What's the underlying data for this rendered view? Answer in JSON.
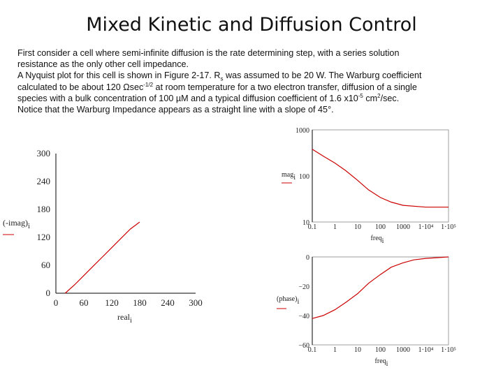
{
  "title": "Mixed Kinetic and Diffusion Control",
  "paragraph": {
    "line1": "First consider a cell where semi-infinite diffusion is the rate determining step, with a series solution",
    "line2": "resistance as the only other cell impedance.",
    "line3_a": "A Nyquist plot for this cell is shown in Figure 2-17. R",
    "line3_sub": "s",
    "line3_b": " was assumed to be 20 W. The Warburg coefficient",
    "line4_a": "calculated to be about 120 Ωsec",
    "line4_sup": "-1/2",
    "line4_b": " at room temperature for a two electron transfer, diffusion of a single",
    "line5_a": "species with a bulk concentration of 100 µM and a typical diffusion coefficient of 1.6 x10",
    "line5_sup": "-5",
    "line5_b": " cm",
    "line5_sup2": "2",
    "line5_c": "/sec.",
    "line6": "Notice that the Warburg Impedance appears as a straight line with a slope of 45°."
  },
  "colors": {
    "curve": "#cc0000",
    "axis": "#000000",
    "box": "#888888"
  },
  "chart_data": [
    {
      "type": "line",
      "name_id": "nyquist",
      "xlabel": "real",
      "xlabel_sub": "i",
      "ylabel": "(-imag)",
      "ylabel_sub": "i",
      "xlim": [
        0,
        300
      ],
      "ylim": [
        0,
        300
      ],
      "x_ticks": [
        "0",
        "60",
        "120",
        "180",
        "240",
        "300"
      ],
      "y_ticks": [
        "0",
        "60",
        "120",
        "180",
        "240",
        "300"
      ],
      "x": [
        20,
        40,
        60,
        80,
        100,
        120,
        140,
        160,
        180
      ],
      "y": [
        0,
        18,
        38,
        58,
        78,
        98,
        118,
        138,
        153
      ]
    },
    {
      "type": "line",
      "name_id": "magnitude",
      "log_x": true,
      "log_y": true,
      "xlabel": "freq",
      "xlabel_sub": "i",
      "ylabel": "mag",
      "ylabel_sub": "i",
      "ylim": [
        10,
        1000
      ],
      "y_ticks": [
        "1000",
        "100",
        "10"
      ],
      "x_ticks": [
        "0.1",
        "1",
        "10",
        "100",
        "1000",
        "1·10⁴",
        "1·10⁵"
      ],
      "x": [
        0.1,
        0.3,
        1,
        3,
        10,
        30,
        100,
        300,
        1000,
        10000,
        100000
      ],
      "y": [
        380,
        270,
        190,
        130,
        80,
        50,
        34,
        27,
        23,
        21,
        21
      ]
    },
    {
      "type": "line",
      "name_id": "phase",
      "log_x": true,
      "xlabel": "freq",
      "xlabel_sub": "i",
      "ylabel": "phase",
      "ylabel_sub": "i",
      "ylim": [
        -60,
        0
      ],
      "y_ticks": [
        "0",
        "−20",
        "−40",
        "−60"
      ],
      "x_ticks": [
        "0.1",
        "1",
        "10",
        "100",
        "1000",
        "1·10⁴",
        "1·10⁵"
      ],
      "x": [
        0.1,
        0.3,
        1,
        3,
        10,
        30,
        100,
        300,
        1000,
        3000,
        10000,
        100000
      ],
      "y": [
        -42,
        -40,
        -36,
        -31,
        -25,
        -18,
        -12,
        -7,
        -4,
        -2,
        -1,
        0
      ]
    }
  ]
}
